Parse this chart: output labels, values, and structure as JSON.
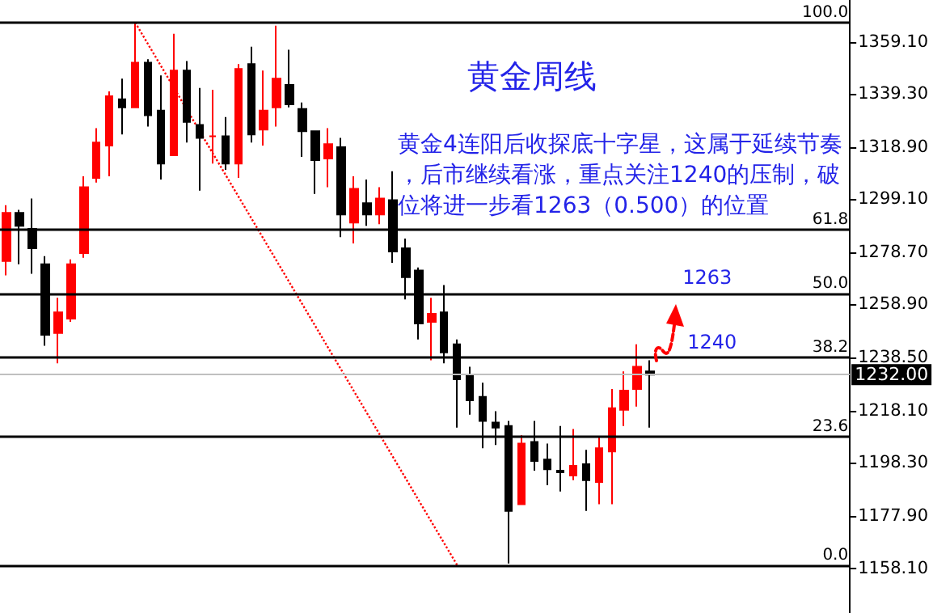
{
  "chart_data": {
    "type": "candlestick",
    "title": "黄金周线",
    "annotations": [
      "黄金4连阳后收探底十字星，这属于延续节奏，后市继续看涨，重点关注1240的压制，破位将进一步看1263（0.500）的位置",
      {
        "text": "1263",
        "y": 1263
      },
      {
        "text": "1240",
        "y": 1240
      },
      {
        "text": "100.0",
        "y": 1366.4
      },
      {
        "text": "61.8",
        "y": 1287.3
      },
      {
        "text": "50.0",
        "y": 1262.9
      },
      {
        "text": "38.2",
        "y": 1238.4
      },
      {
        "text": "23.6",
        "y": 1208.2
      },
      {
        "text": "0.0",
        "y": 1159.3
      }
    ],
    "categories": [
      null,
      null,
      null,
      null,
      null,
      null,
      null,
      null,
      null,
      null,
      null,
      null,
      null,
      null,
      null,
      null,
      null,
      null,
      null,
      null,
      null,
      null,
      null,
      null,
      null,
      null,
      null,
      null,
      null,
      null,
      null,
      null,
      null,
      null,
      null,
      null,
      null,
      null,
      null,
      null,
      null,
      null,
      null,
      null,
      null,
      null,
      null,
      null,
      null,
      null,
      null,
      null,
      null,
      null,
      null,
      null,
      null,
      null,
      null,
      null,
      null,
      null,
      null,
      null,
      null,
      null
    ],
    "ohlc": [
      [
        1275.4,
        1296.7,
        1269.9,
        1293.7
      ],
      [
        1293.7,
        1294.9,
        1274.1,
        1288.8
      ],
      [
        1287.6,
        1299.2,
        1270.5,
        1280.2
      ],
      [
        1274.1,
        1277.2,
        1243.0,
        1247.2
      ],
      [
        1247.9,
        1261.3,
        1236.3,
        1255.8
      ],
      [
        1253.4,
        1276.0,
        1252.1,
        1274.1
      ],
      [
        1278.4,
        1307.7,
        1276.6,
        1303.5
      ],
      [
        1307.1,
        1326.1,
        1305.3,
        1320.6
      ],
      [
        1319.4,
        1340.1,
        1307.7,
        1338.3
      ],
      [
        1337.1,
        1345.0,
        1323.7,
        1334.0
      ],
      [
        1334.0,
        1366.4,
        1334.0,
        1351.1
      ],
      [
        1351.1,
        1352.4,
        1326.7,
        1331.0
      ],
      [
        1332.8,
        1346.2,
        1306.5,
        1312.6
      ],
      [
        1315.7,
        1362.1,
        1315.7,
        1348.1
      ],
      [
        1348.1,
        1351.7,
        1320.6,
        1328.5
      ],
      [
        1327.3,
        1341.4,
        1302.2,
        1322.4
      ],
      [
        1323.0,
        1340.7,
        1312.6,
        1323.0
      ],
      [
        1323.0,
        1330.3,
        1310.2,
        1312.6
      ],
      [
        1312.6,
        1350.5,
        1307.1,
        1348.7
      ],
      [
        1350.5,
        1357.2,
        1320.6,
        1323.7
      ],
      [
        1325.5,
        1348.1,
        1319.4,
        1332.8
      ],
      [
        1334.0,
        1365.2,
        1326.7,
        1345.0
      ],
      [
        1342.6,
        1356.0,
        1334.0,
        1335.2
      ],
      [
        1333.4,
        1335.9,
        1315.1,
        1324.9
      ],
      [
        1324.9,
        1324.9,
        1301.0,
        1313.9
      ],
      [
        1314.5,
        1326.1,
        1303.5,
        1320.0
      ],
      [
        1318.8,
        1322.4,
        1284.5,
        1293.1
      ],
      [
        1290.0,
        1307.7,
        1282.1,
        1302.9
      ],
      [
        1297.4,
        1306.5,
        1288.8,
        1293.1
      ],
      [
        1293.1,
        1303.5,
        1289.4,
        1299.2
      ],
      [
        1298.6,
        1309.6,
        1274.7,
        1279.0
      ],
      [
        1280.2,
        1283.9,
        1260.7,
        1269.2
      ],
      [
        1271.7,
        1272.9,
        1245.4,
        1251.5
      ],
      [
        1252.1,
        1261.3,
        1237.5,
        1255.2
      ],
      [
        1255.8,
        1266.2,
        1236.3,
        1240.5
      ],
      [
        1243.6,
        1245.4,
        1211.8,
        1230.2
      ],
      [
        1232.0,
        1235.0,
        1216.7,
        1222.2
      ],
      [
        1223.5,
        1228.9,
        1203.9,
        1214.3
      ],
      [
        1213.7,
        1218.0,
        1205.1,
        1211.8
      ],
      [
        1212.4,
        1214.3,
        1159.9,
        1180.0
      ],
      [
        1182.5,
        1208.8,
        1182.5,
        1205.7
      ],
      [
        1206.3,
        1214.3,
        1195.3,
        1199.0
      ],
      [
        1199.6,
        1205.7,
        1189.8,
        1195.9
      ],
      [
        1195.3,
        1212.4,
        1187.4,
        1194.7
      ],
      [
        1193.5,
        1211.2,
        1191.7,
        1197.2
      ],
      [
        1197.8,
        1203.3,
        1180.0,
        1191.7
      ],
      [
        1191.0,
        1208.2,
        1182.5,
        1203.9
      ],
      [
        1202.7,
        1226.5,
        1182.5,
        1219.2
      ],
      [
        1218.6,
        1233.2,
        1212.4,
        1225.9
      ],
      [
        1226.5,
        1243.6,
        1219.8,
        1235.0
      ],
      [
        1233.2,
        1237.5,
        1211.8,
        1232.0
      ],
      null,
      null,
      null,
      null,
      null,
      null,
      null,
      null,
      null,
      null,
      null,
      null,
      null,
      null,
      null
    ],
    "series": [
      {
        "type": "line",
        "color": "#ff0000",
        "line_style": "dotted",
        "values": [
          null,
          null,
          null,
          null,
          null,
          null,
          null,
          null,
          null,
          null,
          1366.4,
          null,
          null,
          null,
          null,
          null,
          null,
          null,
          null,
          null,
          null,
          null,
          null,
          null,
          null,
          null,
          null,
          null,
          null,
          null,
          null,
          null,
          null,
          null,
          null,
          1159.3,
          null,
          null,
          null,
          null,
          null,
          null,
          null,
          null,
          null,
          null,
          null,
          null,
          null,
          null,
          null,
          null,
          null,
          null,
          null,
          null,
          null,
          null,
          null,
          null,
          null,
          null,
          null,
          null,
          null,
          null
        ]
      }
    ],
    "ylim": [
      1141,
      1375
    ],
    "yticks": [
      {
        "value": 1158.1,
        "label": "1158.10"
      },
      {
        "value": 1177.9,
        "label": "1177.90"
      },
      {
        "value": 1198.3,
        "label": "1198.30"
      },
      {
        "value": 1218.1,
        "label": "1218.10"
      },
      {
        "value": 1238.5,
        "label": "1238.50"
      },
      {
        "value": 1258.9,
        "label": "1258.90"
      },
      {
        "value": 1278.7,
        "label": "1278.70"
      },
      {
        "value": 1299.1,
        "label": "1299.10"
      },
      {
        "value": 1318.9,
        "label": "1318.90"
      },
      {
        "value": 1339.3,
        "label": "1339.30"
      },
      {
        "value": 1359.1,
        "label": "1359.10"
      }
    ],
    "tick_labels": "y",
    "ref_lines": [
      {
        "axis": "y",
        "value": 1366.4
      },
      {
        "axis": "y",
        "value": 1287.3
      },
      {
        "axis": "y",
        "value": 1262.9
      },
      {
        "axis": "y",
        "value": 1238.4
      },
      {
        "axis": "y",
        "value": 1208.2
      },
      {
        "axis": "y",
        "value": 1159.3
      },
      {
        "axis": "y",
        "value": 1232.0,
        "label": "1232.00",
        "color": "#c0c0c0"
      }
    ]
  }
}
